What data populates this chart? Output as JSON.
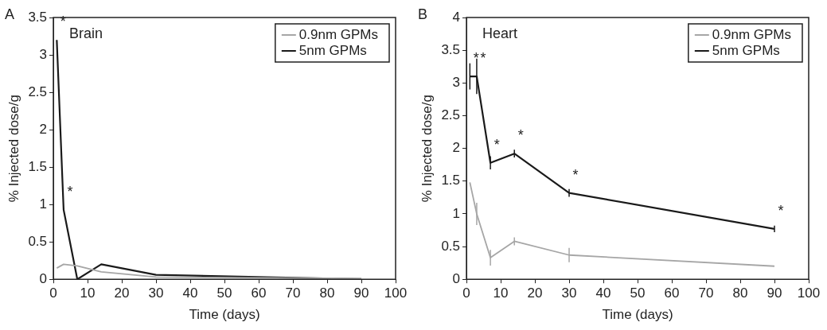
{
  "chart_data": [
    {
      "type": "line",
      "title": "Brain",
      "xlabel": "Time (days)",
      "ylabel": "% Injected dose/g",
      "x": [
        1,
        3,
        7,
        14,
        30,
        90
      ],
      "series": [
        {
          "name": "0.9nm GPMs",
          "color": "#a6a6a6",
          "values": [
            0.15,
            0.2,
            0.18,
            0.1,
            0.03,
            0.01
          ]
        },
        {
          "name": "5nm GPMs",
          "color": "#1a1a1a",
          "values": [
            3.2,
            0.93,
            0,
            0.2,
            0.06,
            0
          ]
        }
      ],
      "xlim": [
        0,
        100
      ],
      "xticks": [
        0,
        10,
        20,
        30,
        40,
        50,
        60,
        70,
        80,
        90,
        100
      ],
      "ylim": [
        0,
        3.5
      ],
      "yticks": [
        0,
        0.5,
        1,
        1.5,
        2,
        2.5,
        3,
        3.5
      ],
      "legend": "top right",
      "grid": false,
      "annotations": [
        "A",
        {
          "text": "*",
          "x": 1,
          "y": 3.2
        },
        {
          "text": "*",
          "x": 3,
          "y": 0.93
        }
      ]
    },
    {
      "type": "line",
      "title": "Heart",
      "xlabel": "Time (days)",
      "ylabel": "% Injected dose/g",
      "x": [
        1,
        3,
        7,
        14,
        30,
        90
      ],
      "series": [
        {
          "name": "0.9nm GPMs",
          "color": "#a6a6a6",
          "values": [
            1.48,
            1.0,
            0.33,
            0.58,
            0.37,
            0.2
          ],
          "errors": [
            null,
            0.17,
            0.12,
            0.06,
            0.11,
            null
          ]
        },
        {
          "name": "5nm GPMs",
          "color": "#1a1a1a",
          "values": [
            3.1,
            3.1,
            1.78,
            1.92,
            1.32,
            0.77
          ],
          "errors": [
            0.2,
            0.27,
            0.1,
            0.06,
            0.06,
            0.05
          ]
        }
      ],
      "xlim": [
        0,
        100
      ],
      "xticks": [
        0,
        10,
        20,
        30,
        40,
        50,
        60,
        70,
        80,
        90,
        100
      ],
      "ylim": [
        0,
        4
      ],
      "yticks": [
        0,
        0.5,
        1,
        1.5,
        2,
        2.5,
        3,
        3.5,
        4
      ],
      "legend": "top right",
      "grid": false,
      "annotations": [
        "B",
        {
          "text": "*",
          "x": 1,
          "y": 3.1
        },
        {
          "text": "*",
          "x": 3,
          "y": 3.1
        },
        {
          "text": "*",
          "x": 7,
          "y": 1.78
        },
        {
          "text": "*",
          "x": 14,
          "y": 1.92
        },
        {
          "text": "*",
          "x": 30,
          "y": 1.32
        },
        {
          "text": "*",
          "x": 90,
          "y": 0.77
        }
      ]
    }
  ]
}
